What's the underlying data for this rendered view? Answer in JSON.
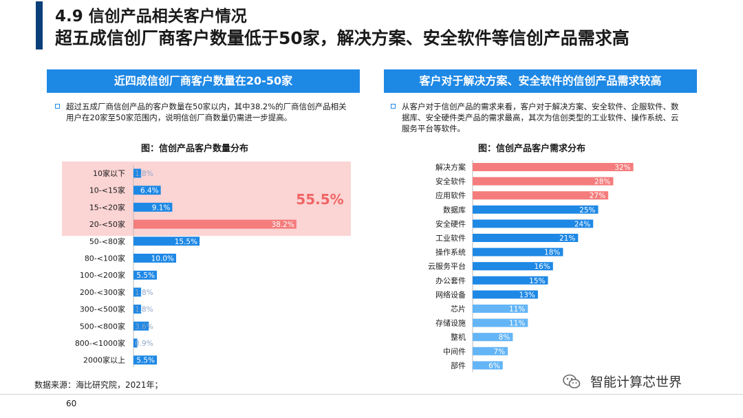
{
  "header": {
    "title_line1": "4.9 信创产品相关客户情况",
    "title_line2": "超五成信创厂商客户数量低于50家，解决方案、安全软件等信创产品需求高"
  },
  "left_panel": {
    "heading": "近四成信创厂商客户数量在20-50家",
    "bullet": "超过五成厂商信创产品的客户数量在50家以内，其中38.2%的厂商信创产品相关用户在20家至50家范围内，说明信创厂商数量仍需进一步提高。",
    "chart_title": "图：信创产品客户数量分布",
    "highlight_label": "55.5%"
  },
  "right_panel": {
    "heading": "客户对于解决方案、安全软件的信创产品需求较高",
    "bullet": "从客户对于信创产品的需求来看，客户对于解决方案、安全软件、企服软件、数据库、安全硬件类产品的需求最高，其次为信创类型的工业软件、操作系统、云服务平台等软件。",
    "chart_title": "图：信创产品客户需求分布"
  },
  "chart_data": [
    {
      "type": "bar",
      "orientation": "horizontal",
      "categories": [
        "10家以下",
        "10-<15家",
        "15-<20家",
        "20-<50家",
        "50-<80家",
        "80-<100家",
        "100-<200家",
        "200-<300家",
        "300-<500家",
        "500-<800家",
        "800-<1000家",
        "2000家以上"
      ],
      "values": [
        1.8,
        6.4,
        9.1,
        38.2,
        15.5,
        10.0,
        5.5,
        1.8,
        1.8,
        3.6,
        0.9,
        5.5
      ],
      "labels": [
        "1.8%",
        "6.4%",
        "9.1%",
        "38.2%",
        "15.5%",
        "10.0%",
        "5.5%",
        "1.8%",
        "1.8%",
        "3.6%",
        "0.9%",
        "5.5%"
      ],
      "highlight_indices": [
        3
      ],
      "highlight_region_indices": [
        0,
        1,
        2,
        3
      ],
      "colors": {
        "normal": "#1e88e5",
        "highlight": "#f47c7c",
        "region": "#fbd4d4"
      }
    },
    {
      "type": "bar",
      "orientation": "horizontal",
      "categories": [
        "解决方案",
        "安全软件",
        "应用软件",
        "数据库",
        "安全硬件",
        "工业软件",
        "操作系统",
        "云服务平台",
        "办公套件",
        "网络设备",
        "芯片",
        "存储设施",
        "整机",
        "中间件",
        "部件"
      ],
      "values": [
        32,
        28,
        27,
        25,
        24,
        21,
        18,
        16,
        15,
        13,
        11,
        11,
        8,
        7,
        6
      ],
      "labels": [
        "32%",
        "28%",
        "27%",
        "25%",
        "24%",
        "21%",
        "18%",
        "16%",
        "15%",
        "13%",
        "11%",
        "11%",
        "8%",
        "7%",
        "6%"
      ],
      "highlight_indices": [
        0,
        1,
        2
      ],
      "colors": {
        "normal": "#1e88e5",
        "light": "#64b5f6",
        "highlight": "#f47c7c"
      }
    }
  ],
  "footer": {
    "source": "数据来源：海比研究院，2021年；",
    "page_number": "60",
    "wechat_account": "智能计算芯世界"
  }
}
